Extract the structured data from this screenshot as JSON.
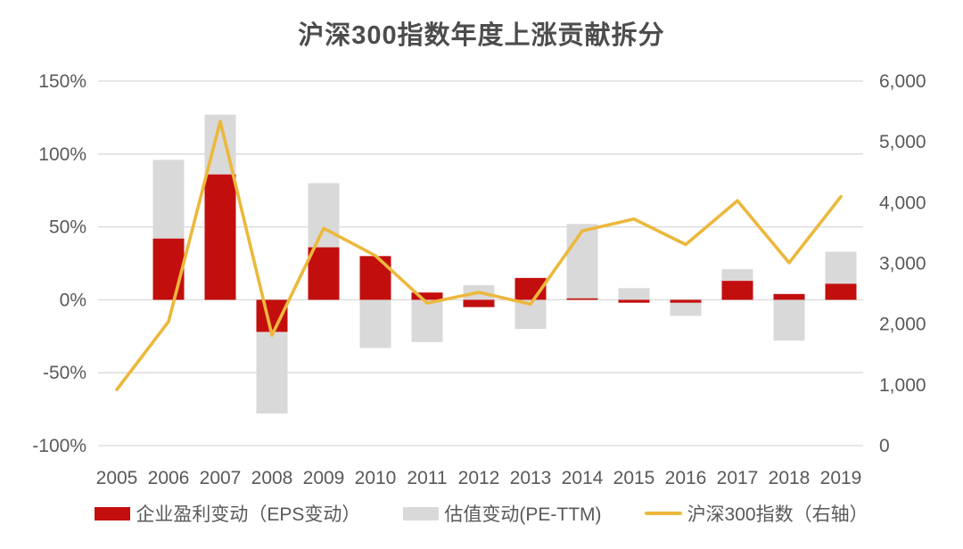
{
  "chart_data": {
    "type": "stacked-bar+line",
    "title": "沪深300指数年度上涨贡献拆分",
    "categories": [
      "2005",
      "2006",
      "2007",
      "2008",
      "2009",
      "2010",
      "2011",
      "2012",
      "2013",
      "2014",
      "2015",
      "2016",
      "2017",
      "2018",
      "2019"
    ],
    "series": [
      {
        "name": "企业盈利变动（EPS变动）",
        "kind": "bar",
        "axis": "left",
        "unit": "%",
        "color": "#c30e0e",
        "values": [
          null,
          42,
          86,
          -22,
          36,
          30,
          5,
          -5,
          15,
          1,
          -2,
          -2,
          13,
          4,
          11
        ]
      },
      {
        "name": "估值变动(PE-TTM)",
        "kind": "bar",
        "axis": "left",
        "unit": "%",
        "color": "#d9d9d9",
        "values": [
          null,
          54,
          41,
          -56,
          44,
          -33,
          -29,
          10,
          -20,
          51,
          8,
          -9,
          8,
          -28,
          22
        ]
      },
      {
        "name": "沪深300指数（右轴）",
        "kind": "line",
        "axis": "right",
        "color": "#ecb83c",
        "values": [
          923,
          2041,
          5338,
          1818,
          3576,
          3128,
          2346,
          2523,
          2330,
          3534,
          3731,
          3310,
          4031,
          3011,
          4097
        ]
      }
    ],
    "left_axis": {
      "min": -100,
      "max": 150,
      "tick_values": [
        150,
        100,
        50,
        0,
        -50,
        -100
      ],
      "tick_labels": [
        "150%",
        "100%",
        "50%",
        "0%",
        "-50%",
        "-100%"
      ]
    },
    "right_axis": {
      "min": 0,
      "max": 6000,
      "tick_values": [
        6000,
        5000,
        4000,
        3000,
        2000,
        1000,
        0
      ],
      "tick_labels": [
        "6,000",
        "5,000",
        "4,000",
        "3,000",
        "2,000",
        "1,000",
        "0"
      ]
    },
    "grid": "horizontal-only",
    "legend_position": "bottom",
    "colors": {
      "text": "#595959",
      "title": "#4c4c4c",
      "gridline": "#d9d9d9",
      "background": "#ffffff"
    }
  }
}
